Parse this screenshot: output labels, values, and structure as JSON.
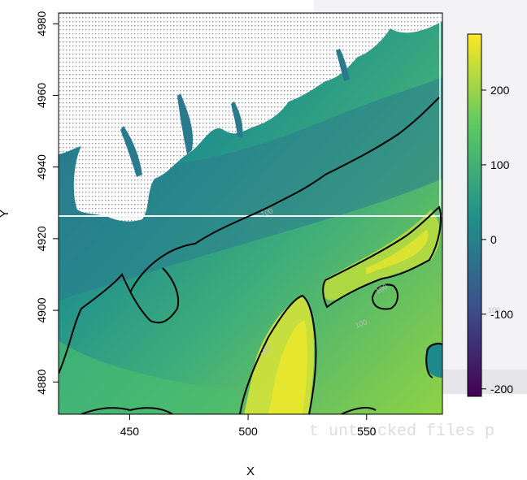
{
  "chart_data": {
    "type": "heatmap",
    "title": "",
    "xlabel": "X",
    "ylabel": "Y",
    "xlim": [
      420,
      582
    ],
    "ylim": [
      4871,
      4983
    ],
    "x_ticks": [
      450,
      500,
      550
    ],
    "y_ticks": [
      4880,
      4900,
      4920,
      4940,
      4960,
      4980
    ],
    "colorbar": {
      "min": -210,
      "max": 275,
      "ticks": [
        -200,
        -100,
        0,
        100,
        200
      ],
      "palette": [
        "#440154",
        "#3b528b",
        "#21918c",
        "#5ec962",
        "#fde725"
      ]
    },
    "contour_level": 100,
    "contour_labels": [
      "100",
      "100",
      "100",
      "100",
      "100"
    ],
    "background_text": "t untracked files p",
    "colors": {
      "land": "#ffffff",
      "deep": "#2a6f8e",
      "mid": "#21918c",
      "shallow": "#5ec962",
      "high": "#c8e03a",
      "contour": "#000000"
    }
  }
}
